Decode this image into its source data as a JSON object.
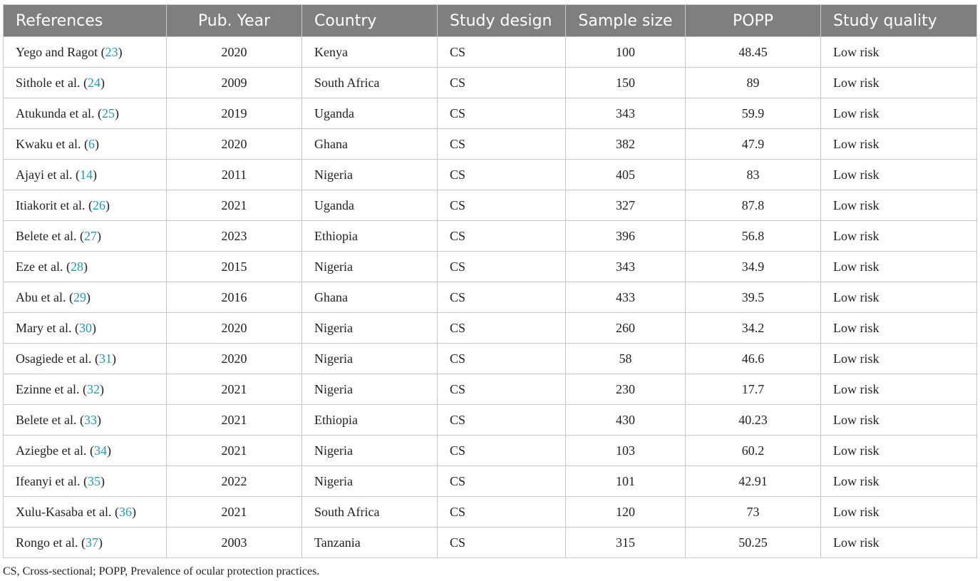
{
  "headers": [
    "References",
    "Pub. Year",
    "Country",
    "Study design",
    "Sample size",
    "POPP",
    "Study quality"
  ],
  "rows": [
    {
      "author": "Yego and Ragot",
      "ref": "23",
      "year": "2020",
      "country": "Kenya",
      "design": "CS",
      "sample": "100",
      "popp": "48.45",
      "quality": "Low risk"
    },
    {
      "author": "Sithole et al.",
      "ref": "24",
      "year": "2009",
      "country": "South Africa",
      "design": "CS",
      "sample": "150",
      "popp": "89",
      "quality": "Low risk"
    },
    {
      "author": "Atukunda et al.",
      "ref": "25",
      "year": "2019",
      "country": "Uganda",
      "design": "CS",
      "sample": "343",
      "popp": "59.9",
      "quality": "Low risk"
    },
    {
      "author": "Kwaku et al.",
      "ref": "6",
      "year": "2020",
      "country": "Ghana",
      "design": "CS",
      "sample": "382",
      "popp": "47.9",
      "quality": "Low risk"
    },
    {
      "author": "Ajayi et al.",
      "ref": "14",
      "year": "2011",
      "country": "Nigeria",
      "design": "CS",
      "sample": "405",
      "popp": "83",
      "quality": "Low risk"
    },
    {
      "author": "Itiakorit et al.",
      "ref": "26",
      "year": "2021",
      "country": "Uganda",
      "design": "CS",
      "sample": "327",
      "popp": "87.8",
      "quality": "Low risk"
    },
    {
      "author": "Belete et al.",
      "ref": "27",
      "year": "2023",
      "country": "Ethiopia",
      "design": "CS",
      "sample": "396",
      "popp": "56.8",
      "quality": "Low risk"
    },
    {
      "author": "Eze et al.",
      "ref": "28",
      "year": "2015",
      "country": "Nigeria",
      "design": "CS",
      "sample": "343",
      "popp": "34.9",
      "quality": "Low risk"
    },
    {
      "author": "Abu et al.",
      "ref": "29",
      "year": "2016",
      "country": "Ghana",
      "design": "CS",
      "sample": "433",
      "popp": "39.5",
      "quality": "Low risk"
    },
    {
      "author": "Mary et al.",
      "ref": "30",
      "year": "2020",
      "country": "Nigeria",
      "design": "CS",
      "sample": "260",
      "popp": "34.2",
      "quality": "Low risk"
    },
    {
      "author": "Osagiede et al.",
      "ref": "31",
      "year": "2020",
      "country": "Nigeria",
      "design": "CS",
      "sample": "58",
      "popp": "46.6",
      "quality": "Low risk"
    },
    {
      "author": "Ezinne et al.",
      "ref": "32",
      "year": "2021",
      "country": "Nigeria",
      "design": "CS",
      "sample": "230",
      "popp": "17.7",
      "quality": "Low risk"
    },
    {
      "author": "Belete et al.",
      "ref": "33",
      "year": "2021",
      "country": "Ethiopia",
      "design": "CS",
      "sample": "430",
      "popp": "40.23",
      "quality": "Low risk"
    },
    {
      "author": "Aziegbe et al.",
      "ref": "34",
      "year": "2021",
      "country": "Nigeria",
      "design": "CS",
      "sample": "103",
      "popp": "60.2",
      "quality": "Low risk"
    },
    {
      "author": "Ifeanyi et al.",
      "ref": "35",
      "year": "2022",
      "country": "Nigeria",
      "design": "CS",
      "sample": "101",
      "popp": "42.91",
      "quality": "Low risk"
    },
    {
      "author": "Xulu-Kasaba et al.",
      "ref": "36",
      "year": "2021",
      "country": "South Africa",
      "design": "CS",
      "sample": "120",
      "popp": "73",
      "quality": "Low risk"
    },
    {
      "author": "Rongo et al.",
      "ref": "37",
      "year": "2003",
      "country": "Tanzania",
      "design": "CS",
      "sample": "315",
      "popp": "50.25",
      "quality": "Low risk"
    }
  ],
  "footnote": "CS, Cross-sectional; POPP, Prevalence of ocular protection practices.",
  "colors": {
    "header_bg": "#7f7f7f",
    "header_text": "#ffffff",
    "ref_link": "#1a9bb8",
    "border": "#c8c8c8"
  }
}
